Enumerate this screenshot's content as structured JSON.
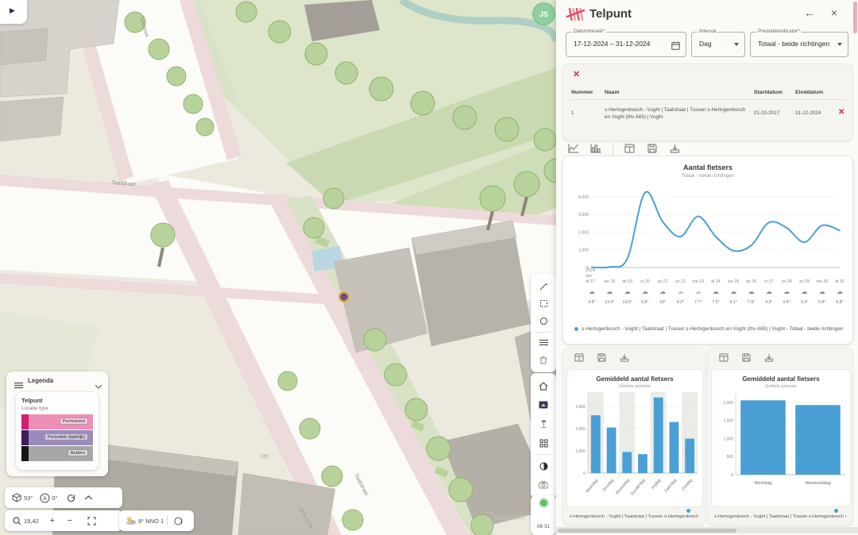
{
  "colors": {
    "accent": "#4aa0d5",
    "brand_pink": "#e0596e",
    "danger": "#b23a48",
    "tree_green": "#b8d29b",
    "road_white": "#fbfbf7"
  },
  "icons": {
    "back_arrow": "←",
    "close_x": "×",
    "play": "▶",
    "cloud": "☁",
    "plus": "+",
    "minus": "−",
    "row_delete": "✕",
    "clear_selection": "✕"
  },
  "map": {
    "avatar_initials": "JS",
    "road_labels": [
      "Taalstraat",
      "Taalstraat",
      "Taalstraat"
    ],
    "parcel_label": "127A-127B",
    "building_label": "125",
    "attribution": "mapbox",
    "clock": "08 31",
    "legend": {
      "header": "Legenda",
      "group_title": "Telpunt",
      "group_subtitle": "Locatie type",
      "items": [
        {
          "label": "Permanent",
          "fill": "#ee8fb5",
          "edge": "#d2206e"
        },
        {
          "label": "Periodiek (tijdelijk)",
          "fill": "#9d8abc",
          "edge": "#3c1e5c"
        },
        {
          "label": "Anders",
          "fill": "#a7a7a7",
          "edge": "#161616"
        }
      ]
    },
    "controls": {
      "pitch": "53°",
      "bearing": "0°",
      "zoom_level": "19,42"
    },
    "weather_widget": "9° NNO 1"
  },
  "panel": {
    "title": "Telpunt",
    "filters": {
      "date_range": {
        "label": "Datumbereik*",
        "value": "17-12-2024  – 31-12-2024"
      },
      "interval": {
        "label": "Interval",
        "value": "Dag"
      },
      "indicator": {
        "label": "Prestatieindicator*",
        "value": "Totaal - beide richtingen"
      }
    },
    "selection_table": {
      "headers": {
        "nummer": "Nummer",
        "naam": "Naam",
        "startdatum": "Startdatum",
        "einddatum": "Einddatum"
      },
      "rows": [
        {
          "nummer": "1",
          "naam": "s-Hertogenbosch - Vught | Taalstraat | Tussen s-Hertogenbosch en Vught (thv A65) | Vught",
          "startdatum": "01-10-2017",
          "einddatum": "31-12-2024"
        }
      ]
    },
    "series_legend": "s-Hertogenbosch - Vught | Taalstraat | Tussen s-Hertogenbosch en Vught (thv A65) | Vught - Totaal - beide richtingen",
    "series_legend_short": "s-Hertogenbosch - Vught | Taalstraat | Tussen s-Hertogenbosch en Vught (thv A65) | Vught"
  },
  "chart_data": [
    {
      "type": "line",
      "title": "Aantal fietsers",
      "subtitle": "Totaal - beide richtingen",
      "x_prefix": [
        "2024",
        "dec"
      ],
      "categories": [
        "di 17",
        "wo 18",
        "do 19",
        "vr 20",
        "za 21",
        "zo 22",
        "ma 23",
        "di 24",
        "wo 25",
        "do 26",
        "vr 27",
        "za 28",
        "zo 29",
        "ma 30",
        "di 31"
      ],
      "values": [
        10,
        30,
        500,
        4250,
        2600,
        1750,
        2900,
        1750,
        950,
        1250,
        2550,
        2250,
        1430,
        2380,
        2100
      ],
      "weather": [
        "rain",
        "rain",
        "rain",
        "rain",
        "rain",
        "cloud",
        "cloud",
        "rain",
        "rain",
        "rain",
        "rain",
        "rain",
        "rain",
        "rain",
        "rain"
      ],
      "temperatures": [
        "9.6°",
        "13.4°",
        "13.6°",
        "6.6°",
        "10°",
        "9.2°",
        "7.7°",
        "7.2°",
        "9.1°",
        "7.9°",
        "4.3°",
        "0.6°",
        "3.4°",
        "5.8°",
        "6.8°"
      ],
      "ylim": [
        0,
        4500
      ],
      "yticks": [
        0,
        1000,
        2000,
        3000,
        4000
      ],
      "grid": "dotted-horizontal",
      "legend_position": "bottom",
      "line_color": "#4aa0d5"
    },
    {
      "type": "bar",
      "title": "Gemiddeld aantal fietsers",
      "subtitle": "Gehele periode",
      "categories": [
        "Maandag",
        "Dinsdag",
        "Woensdag",
        "Donderdag",
        "Vrijdag",
        "Zaterdag",
        "Zondag"
      ],
      "values": [
        2600,
        2050,
        950,
        850,
        3400,
        2300,
        1550
      ],
      "ylim": [
        0,
        3500
      ],
      "yticks": [
        0,
        1000,
        2000,
        3000
      ],
      "grid": "dotted-horizontal",
      "banded_columns": true,
      "bar_color": "#4aa0d5"
    },
    {
      "type": "bar",
      "title": "Gemiddeld aantal fietsers",
      "subtitle": "Gehele periode",
      "categories": [
        "Werkdag",
        "Weekenddag"
      ],
      "values": [
        2060,
        1930
      ],
      "ylim": [
        0,
        2200
      ],
      "yticks": [
        0,
        500,
        1000,
        1500,
        2000
      ],
      "grid": "dotted-horizontal",
      "banded_columns": false,
      "bar_color": "#4aa0d5"
    }
  ]
}
